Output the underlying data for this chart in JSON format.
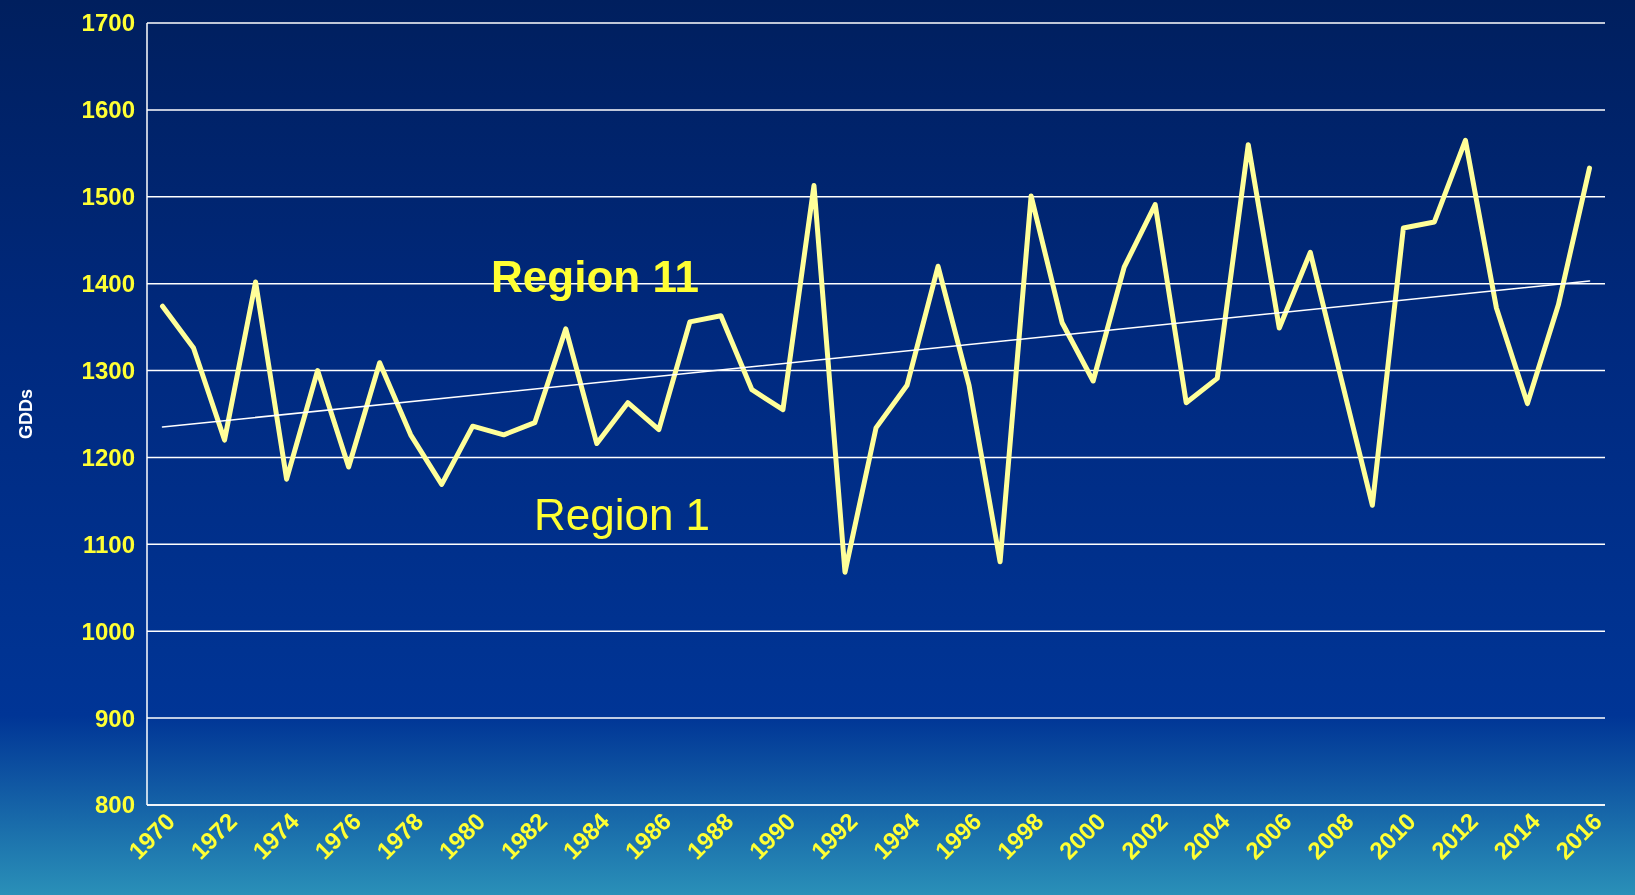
{
  "chart_data": {
    "type": "line",
    "ylabel": "GDDs",
    "x": [
      1970,
      1971,
      1972,
      1973,
      1974,
      1975,
      1976,
      1977,
      1978,
      1979,
      1980,
      1981,
      1982,
      1983,
      1984,
      1985,
      1986,
      1987,
      1988,
      1989,
      1990,
      1991,
      1992,
      1993,
      1994,
      1995,
      1996,
      1997,
      1998,
      1999,
      2000,
      2001,
      2002,
      2003,
      2004,
      2005,
      2006,
      2007,
      2008,
      2009,
      2010,
      2011,
      2012,
      2013,
      2014,
      2015,
      2016
    ],
    "series": [
      {
        "color": "#ffff99",
        "values": [
          1374,
          1326,
          1220,
          1402,
          1175,
          1300,
          1189,
          1309,
          1226,
          1169,
          1236,
          1226,
          1240,
          1348,
          1216,
          1263,
          1232,
          1356,
          1363,
          1278,
          1255,
          1513,
          1068,
          1234,
          1283,
          1420,
          1283,
          1080,
          1501,
          1355,
          1288,
          1419,
          1491,
          1263,
          1291,
          1560,
          1349,
          1436,
          1290,
          1145,
          1464,
          1471,
          1565,
          1372,
          1262,
          1376,
          1533
        ]
      },
      {
        "type": "line",
        "color": "#ffffff",
        "x": [
          1970,
          2016
        ],
        "values": [
          1235,
          1403
        ]
      }
    ],
    "xlim": [
      1969.5,
      2016.5
    ],
    "xticks": [
      1970,
      1972,
      1974,
      1976,
      1978,
      1980,
      1982,
      1984,
      1986,
      1988,
      1990,
      1992,
      1994,
      1996,
      1998,
      2000,
      2002,
      2004,
      2006,
      2008,
      2010,
      2012,
      2014,
      2016
    ],
    "ylim": [
      800,
      1700
    ],
    "yticks": [
      800,
      900,
      1000,
      1100,
      1200,
      1300,
      1400,
      1500,
      1600,
      1700
    ],
    "grid": "y",
    "annotations": [
      "Region 11",
      "Region 1"
    ]
  }
}
